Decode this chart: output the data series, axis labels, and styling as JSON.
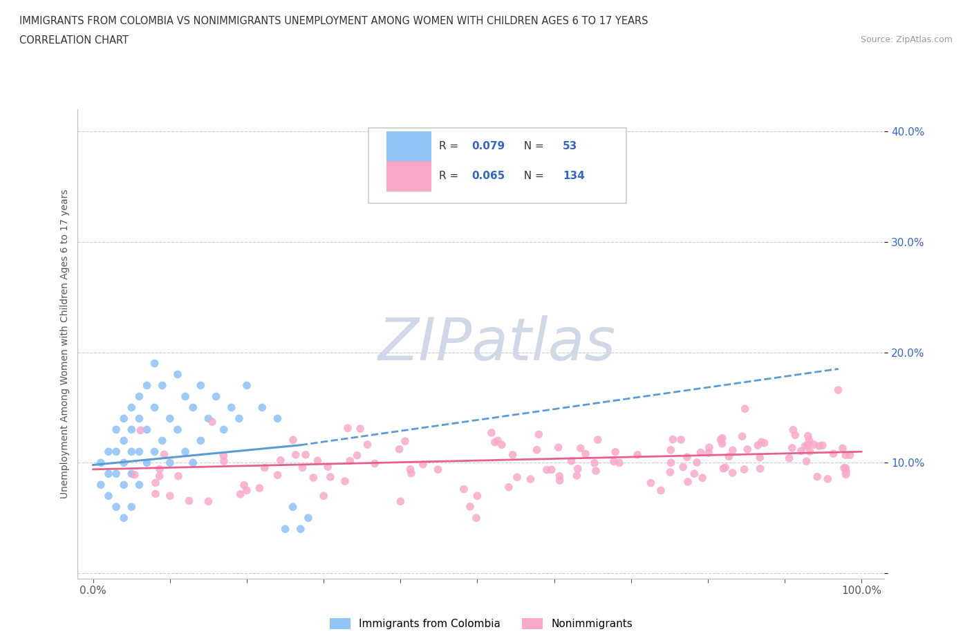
{
  "title_line1": "IMMIGRANTS FROM COLOMBIA VS NONIMMIGRANTS UNEMPLOYMENT AMONG WOMEN WITH CHILDREN AGES 6 TO 17 YEARS",
  "title_line2": "CORRELATION CHART",
  "source_text": "Source: ZipAtlas.com",
  "ylabel": "Unemployment Among Women with Children Ages 6 to 17 years",
  "color_blue": "#92C5F7",
  "color_pink": "#F9A8C9",
  "color_blue_line": "#5B9BD5",
  "color_pink_line": "#E8608A",
  "color_r_value": "#3366CC",
  "color_n_value": "#3366CC",
  "legend_r1": "0.079",
  "legend_n1": "53",
  "legend_r2": "0.065",
  "legend_n2": "134",
  "grid_color": "#CCCCCC",
  "background_color": "#FFFFFF",
  "watermark_text": "ZIPatlas",
  "watermark_color": "#D0D8E8",
  "ytick_labels": [
    "",
    "10.0%",
    "20.0%",
    "30.0%",
    "40.0%"
  ],
  "ytick_values": [
    0.0,
    0.1,
    0.2,
    0.3,
    0.4
  ],
  "xtick_labels": [
    "0.0%",
    "100.0%"
  ],
  "xtick_values": [
    0.0,
    1.0
  ]
}
